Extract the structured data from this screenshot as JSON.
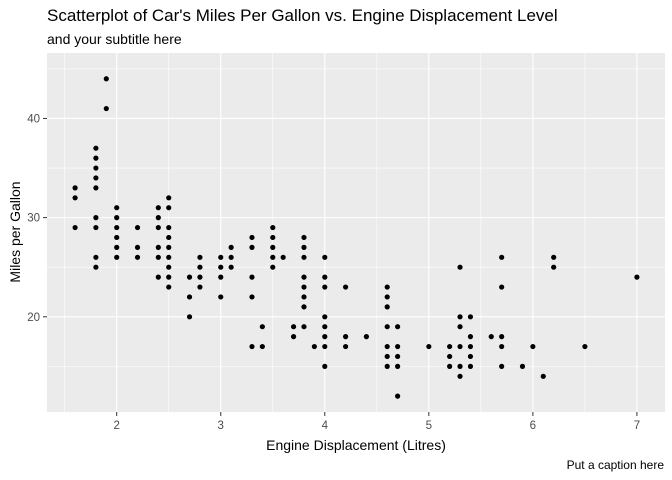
{
  "chart_data": {
    "type": "scatter",
    "title": "Scatterplot of Car's Miles Per Gallon vs. Engine Displacement Level",
    "subtitle": "and your subtitle here",
    "caption": "Put a caption here",
    "xlabel": "Engine Displacement (Litres)",
    "ylabel": "Miles per Gallon",
    "xlim": [
      1.33,
      7.27
    ],
    "ylim": [
      10.4,
      46.6
    ],
    "xticks": [
      2,
      3,
      4,
      5,
      6,
      7
    ],
    "yticks": [
      20,
      30,
      40
    ],
    "grid": true,
    "background": "#ebebeb",
    "grid_major_color": "#ffffff",
    "point_color": "#000000",
    "points": [
      [
        1.6,
        33
      ],
      [
        1.6,
        32
      ],
      [
        1.6,
        29
      ],
      [
        1.8,
        37
      ],
      [
        1.8,
        36
      ],
      [
        1.8,
        35
      ],
      [
        1.8,
        34
      ],
      [
        1.8,
        33
      ],
      [
        1.8,
        30
      ],
      [
        1.8,
        29
      ],
      [
        1.8,
        26
      ],
      [
        1.8,
        25
      ],
      [
        1.9,
        44
      ],
      [
        1.9,
        41
      ],
      [
        2.0,
        31
      ],
      [
        2.0,
        30
      ],
      [
        2.0,
        29
      ],
      [
        2.0,
        28
      ],
      [
        2.0,
        27
      ],
      [
        2.0,
        26
      ],
      [
        2.2,
        29
      ],
      [
        2.2,
        27
      ],
      [
        2.2,
        26
      ],
      [
        2.4,
        31
      ],
      [
        2.4,
        30
      ],
      [
        2.4,
        29
      ],
      [
        2.4,
        27
      ],
      [
        2.4,
        26
      ],
      [
        2.4,
        24
      ],
      [
        2.5,
        32
      ],
      [
        2.5,
        31
      ],
      [
        2.5,
        29
      ],
      [
        2.5,
        28
      ],
      [
        2.5,
        27
      ],
      [
        2.5,
        26
      ],
      [
        2.5,
        25
      ],
      [
        2.5,
        24
      ],
      [
        2.5,
        23
      ],
      [
        2.7,
        24
      ],
      [
        2.7,
        22
      ],
      [
        2.7,
        20
      ],
      [
        2.8,
        26
      ],
      [
        2.8,
        25
      ],
      [
        2.8,
        24
      ],
      [
        2.8,
        23
      ],
      [
        3.0,
        26
      ],
      [
        3.0,
        25
      ],
      [
        3.0,
        24
      ],
      [
        3.0,
        22
      ],
      [
        3.1,
        27
      ],
      [
        3.1,
        26
      ],
      [
        3.1,
        25
      ],
      [
        3.3,
        28
      ],
      [
        3.3,
        27
      ],
      [
        3.3,
        24
      ],
      [
        3.3,
        22
      ],
      [
        3.3,
        17
      ],
      [
        3.4,
        19
      ],
      [
        3.4,
        17
      ],
      [
        3.5,
        29
      ],
      [
        3.5,
        28
      ],
      [
        3.5,
        27
      ],
      [
        3.5,
        26
      ],
      [
        3.5,
        25
      ],
      [
        3.6,
        26
      ],
      [
        3.7,
        19
      ],
      [
        3.7,
        18
      ],
      [
        3.8,
        28
      ],
      [
        3.8,
        27
      ],
      [
        3.8,
        26
      ],
      [
        3.8,
        24
      ],
      [
        3.8,
        23
      ],
      [
        3.8,
        22
      ],
      [
        3.8,
        21
      ],
      [
        3.8,
        19
      ],
      [
        3.9,
        17
      ],
      [
        4.0,
        26
      ],
      [
        4.0,
        24
      ],
      [
        4.0,
        23
      ],
      [
        4.0,
        20
      ],
      [
        4.0,
        19
      ],
      [
        4.0,
        18
      ],
      [
        4.0,
        17
      ],
      [
        4.0,
        15
      ],
      [
        4.2,
        23
      ],
      [
        4.2,
        18
      ],
      [
        4.2,
        17
      ],
      [
        4.4,
        18
      ],
      [
        4.6,
        23
      ],
      [
        4.6,
        22
      ],
      [
        4.6,
        21
      ],
      [
        4.6,
        19
      ],
      [
        4.6,
        17
      ],
      [
        4.6,
        16
      ],
      [
        4.6,
        15
      ],
      [
        4.7,
        19
      ],
      [
        4.7,
        17
      ],
      [
        4.7,
        16
      ],
      [
        4.7,
        15
      ],
      [
        4.7,
        12
      ],
      [
        5.0,
        17
      ],
      [
        5.2,
        17
      ],
      [
        5.2,
        16
      ],
      [
        5.2,
        15
      ],
      [
        5.3,
        25
      ],
      [
        5.3,
        20
      ],
      [
        5.3,
        19
      ],
      [
        5.3,
        17
      ],
      [
        5.3,
        15
      ],
      [
        5.3,
        14
      ],
      [
        5.4,
        20
      ],
      [
        5.4,
        18
      ],
      [
        5.4,
        17
      ],
      [
        5.4,
        16
      ],
      [
        5.4,
        15
      ],
      [
        5.6,
        18
      ],
      [
        5.7,
        26
      ],
      [
        5.7,
        23
      ],
      [
        5.7,
        18
      ],
      [
        5.7,
        17
      ],
      [
        5.7,
        15
      ],
      [
        5.9,
        15
      ],
      [
        6.0,
        17
      ],
      [
        6.1,
        14
      ],
      [
        6.2,
        26
      ],
      [
        6.2,
        25
      ],
      [
        6.5,
        17
      ],
      [
        7.0,
        24
      ]
    ]
  }
}
